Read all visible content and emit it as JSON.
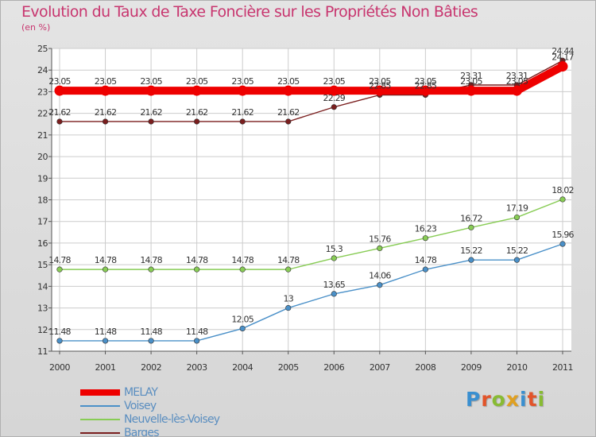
{
  "chart_data": {
    "type": "line",
    "title": "Evolution du Taux de Taxe Foncière sur les Propriétés Non Bâties",
    "subtitle": "(en %)",
    "x": [
      "2000",
      "2001",
      "2002",
      "2003",
      "2004",
      "2005",
      "2006",
      "2007",
      "2008",
      "2009",
      "2010",
      "2011"
    ],
    "ylim": [
      11,
      25
    ],
    "yticks": [
      11,
      12,
      13,
      14,
      15,
      16,
      17,
      18,
      19,
      20,
      21,
      22,
      23,
      24,
      25
    ],
    "grid": true,
    "legend_position": "bottom-left",
    "series": [
      {
        "name": "MELAY",
        "color": "#ee0000",
        "values": [
          23.05,
          23.05,
          23.05,
          23.05,
          23.05,
          23.05,
          23.05,
          23.05,
          23.05,
          23.05,
          23.05,
          24.17
        ],
        "labels": [
          "23.05",
          "23.05",
          "23.05",
          "23.05",
          "23.05",
          "23.05",
          "23.05",
          "23.05",
          "23.05",
          "23.05",
          "23.05",
          "24.17"
        ]
      },
      {
        "name": "Voisey",
        "color": "#4a90c8",
        "values": [
          11.48,
          11.48,
          11.48,
          11.48,
          12.05,
          13,
          13.65,
          14.06,
          14.78,
          15.22,
          15.22,
          15.96
        ],
        "labels": [
          "11.48",
          "11.48",
          "11.48",
          "11.48",
          "12.05",
          "13",
          "13.65",
          "14.06",
          "14.78",
          "15.22",
          "15.22",
          "15.96"
        ]
      },
      {
        "name": "Neuvelle-lès-Voisey",
        "color": "#88cc55",
        "values": [
          14.78,
          14.78,
          14.78,
          14.78,
          14.78,
          14.78,
          15.3,
          15.76,
          16.23,
          16.72,
          17.19,
          18.02
        ],
        "labels": [
          "14.78",
          "14.78",
          "14.78",
          "14.78",
          "14.78",
          "14.78",
          "15.3",
          "15.76",
          "16.23",
          "16.72",
          "17.19",
          "18.02"
        ]
      },
      {
        "name": "Barges",
        "color": "#7a1e1e",
        "values": [
          21.62,
          21.62,
          21.62,
          21.62,
          21.62,
          21.62,
          22.29,
          22.85,
          22.85,
          23.31,
          23.31,
          24.44
        ],
        "labels": [
          "21.62",
          "21.62",
          "21.62",
          "21.62",
          "21.62",
          "21.62",
          "22.29",
          "22.85",
          "22.85",
          "23.31",
          "23.31",
          "24.44"
        ]
      }
    ]
  },
  "logo": {
    "text": "Proxiti"
  }
}
